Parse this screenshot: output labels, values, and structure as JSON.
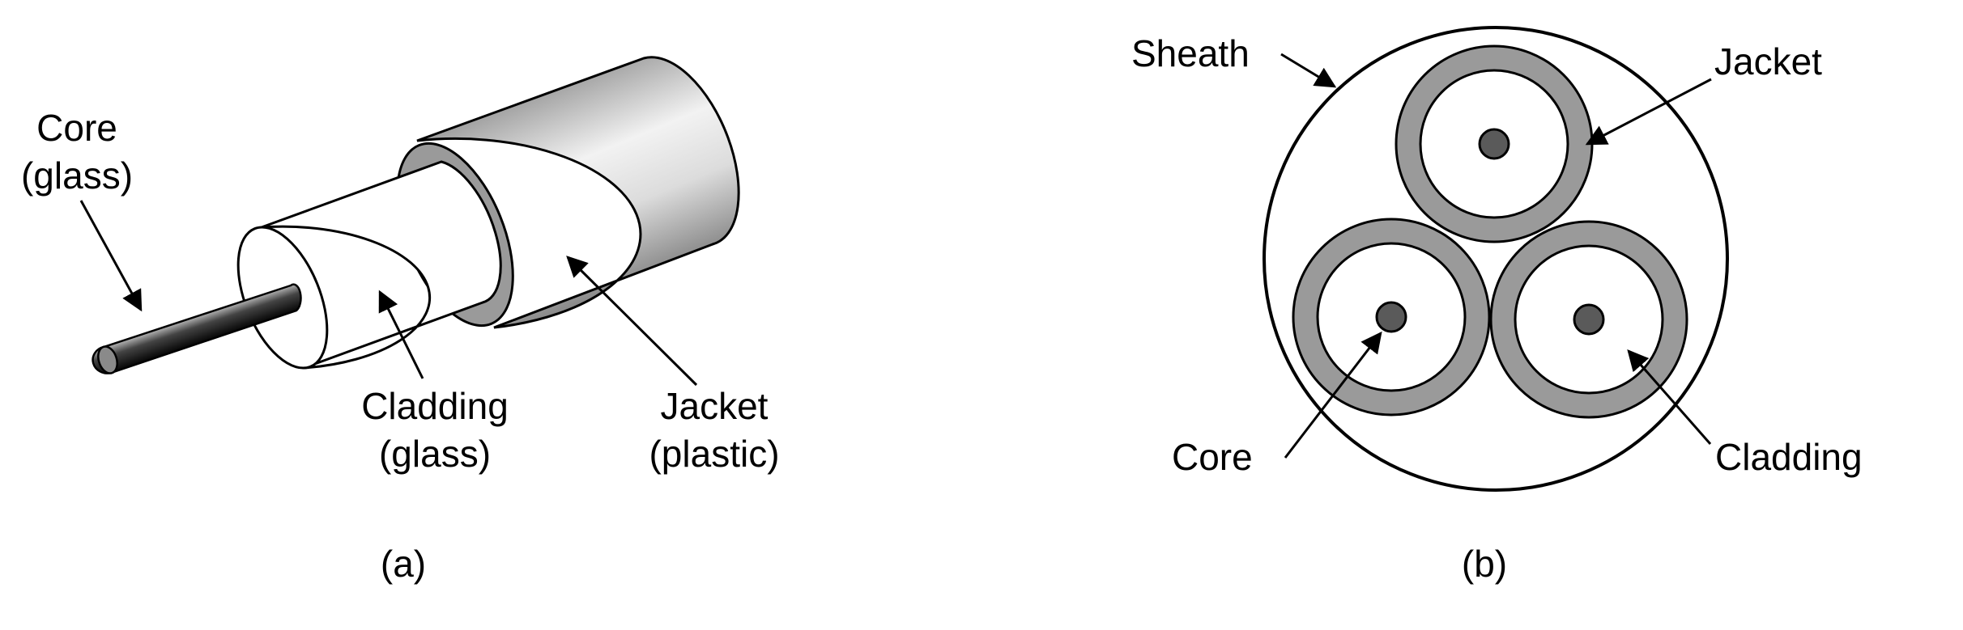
{
  "panel_a": {
    "core_label_line1": "Core",
    "core_label_line2": "(glass)",
    "cladding_label_line1": "Cladding",
    "cladding_label_line2": "(glass)",
    "jacket_label_line1": "Jacket",
    "jacket_label_line2": "(plastic)",
    "caption": "(a)"
  },
  "panel_b": {
    "sheath_label": "Sheath",
    "jacket_label": "Jacket",
    "core_label": "Core",
    "cladding_label": "Cladding",
    "caption": "(b)"
  },
  "colors": {
    "jacket": "#9a9a9a",
    "core": "#5a5a5a",
    "cladding": "#ffffff",
    "outline": "#000000"
  }
}
